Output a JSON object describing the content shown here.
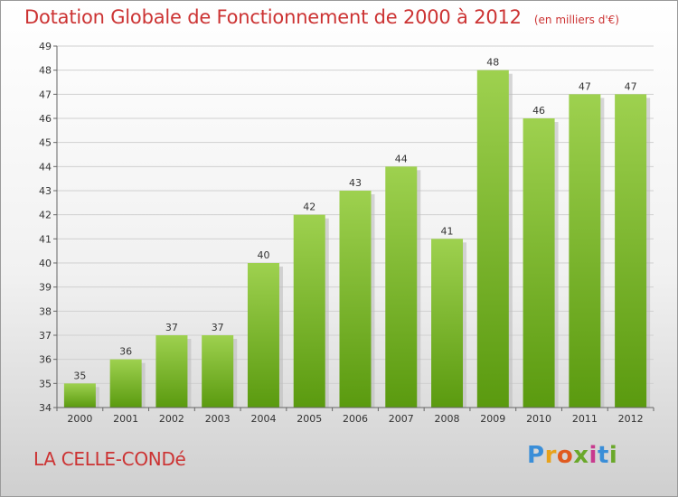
{
  "header": {
    "title": "Dotation Globale de Fonctionnement de 2000 à 2012",
    "unit": "(en milliers d'€)"
  },
  "footer": {
    "town": "LA CELLE-CONDé",
    "brand": "Proxiti",
    "brand_colors": [
      "#3a8ed8",
      "#e8a21a",
      "#e05a1f",
      "#6aa82a",
      "#c83a8e",
      "#3a8ed8",
      "#6aa82a"
    ]
  },
  "colors": {
    "bar_top": "#9ed14f",
    "bar_bottom": "#5a9a0f",
    "bar_shadow": "#bdbdbd",
    "grid": "#d0d0d0",
    "axis": "#666666",
    "title": "#cc3333"
  },
  "chart_data": {
    "type": "bar",
    "categories": [
      "2000",
      "2001",
      "2002",
      "2003",
      "2004",
      "2005",
      "2006",
      "2007",
      "2008",
      "2009",
      "2010",
      "2011",
      "2012"
    ],
    "values": [
      35,
      36,
      37,
      37,
      40,
      42,
      43,
      44,
      41,
      48,
      46,
      47,
      47
    ],
    "data_labels": [
      "35",
      "36",
      "37",
      "37",
      "40",
      "42",
      "43",
      "44",
      "41",
      "48",
      "46",
      "47",
      "47"
    ],
    "ylim": [
      34,
      49
    ],
    "yticks": [
      "34",
      "35",
      "36",
      "37",
      "38",
      "39",
      "40",
      "41",
      "42",
      "43",
      "44",
      "45",
      "46",
      "47",
      "48",
      "49"
    ],
    "grid": true,
    "title": "Dotation Globale de Fonctionnement de 2000 à 2012",
    "xlabel": "",
    "ylabel": ""
  }
}
